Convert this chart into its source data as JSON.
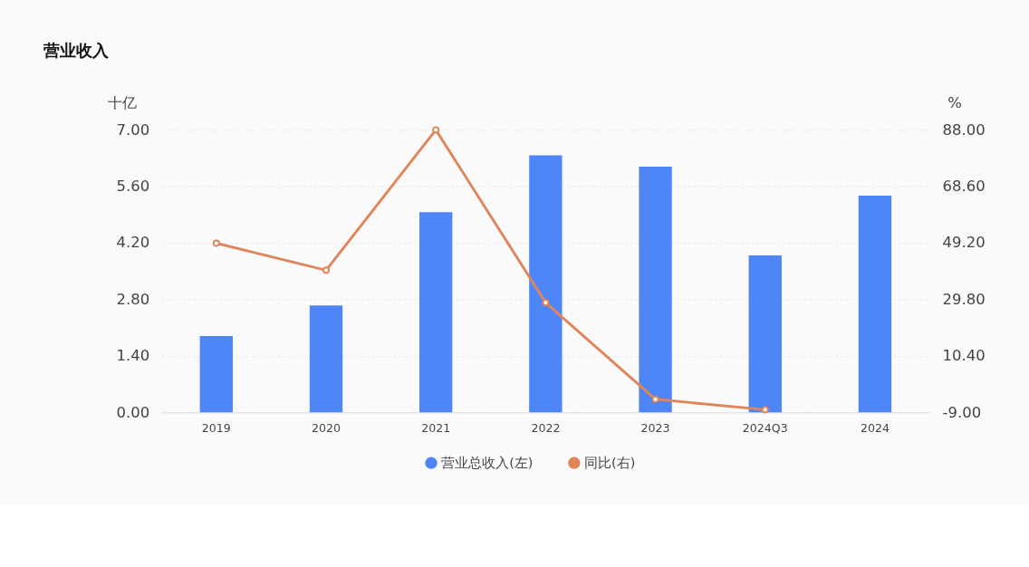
{
  "chart_data": {
    "type": "bar",
    "title": "营业收入",
    "categories": [
      "2019",
      "2020",
      "2021",
      "2022",
      "2023",
      "2024Q3",
      "2024"
    ],
    "ylabel": "十亿",
    "y2label": "%",
    "ylim": [
      0,
      7
    ],
    "yticks": [
      {
        "value": 0,
        "label": "0.00"
      },
      {
        "value": 1.4,
        "label": "1.40"
      },
      {
        "value": 2.8,
        "label": "2.80"
      },
      {
        "value": 4.2,
        "label": "4.20"
      },
      {
        "value": 5.6,
        "label": "5.60"
      },
      {
        "value": 7,
        "label": "7.00"
      }
    ],
    "y2lim": [
      -9,
      88
    ],
    "y2ticks": [
      {
        "value": -9,
        "label": "-9.00"
      },
      {
        "value": 10.4,
        "label": "10.40"
      },
      {
        "value": 29.8,
        "label": "29.80"
      },
      {
        "value": 49.2,
        "label": "49.20"
      },
      {
        "value": 68.6,
        "label": "68.60"
      },
      {
        "value": 88,
        "label": "88.00"
      }
    ],
    "grid": "y",
    "legend": "bottom",
    "marker": "circle",
    "series": [
      {
        "name": "营业总收入(左)",
        "color": "#4e86f7",
        "values": [
          1.89,
          2.65,
          4.96,
          6.37,
          6.09,
          3.89,
          5.37
        ]
      },
      {
        "name": "同比(右)",
        "type": "line",
        "axis": "y2",
        "color": "#e0845a",
        "values": [
          49.1,
          39.8,
          88,
          28.7,
          -4.5,
          -8.1,
          null
        ]
      }
    ]
  }
}
